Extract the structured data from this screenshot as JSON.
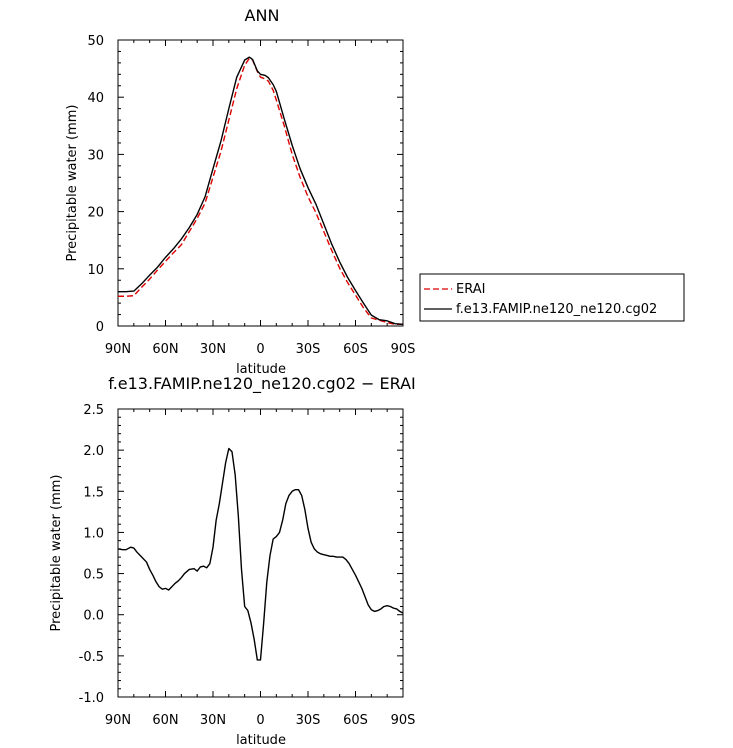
{
  "chart_data": [
    {
      "type": "line",
      "title": "ANN",
      "xlabel": "latitude",
      "ylabel": "Precipitable water (mm)",
      "xlim": [
        -90,
        90
      ],
      "ylim": [
        0,
        50
      ],
      "x_ticks": [
        -90,
        -60,
        -30,
        0,
        30,
        60,
        90
      ],
      "x_tick_labels": [
        "90N",
        "60N",
        "30N",
        "0",
        "30S",
        "60S",
        "90S"
      ],
      "y_ticks": [
        0,
        10,
        20,
        30,
        40,
        50
      ],
      "y_tick_labels": [
        "0",
        "10",
        "20",
        "30",
        "40",
        "50"
      ],
      "legend_position": "right",
      "series": [
        {
          "name": "ERAI",
          "color": "#dd0000",
          "dash": "dashed",
          "x": [
            -90,
            -85,
            -80,
            -75,
            -70,
            -65,
            -60,
            -55,
            -50,
            -45,
            -40,
            -35,
            -30,
            -25,
            -20,
            -15,
            -10,
            -7,
            -5,
            -2,
            0,
            3,
            5,
            8,
            10,
            15,
            20,
            25,
            30,
            35,
            40,
            45,
            50,
            55,
            60,
            65,
            70,
            75,
            80,
            85,
            90
          ],
          "y": [
            5.2,
            5.2,
            5.3,
            6.8,
            8.2,
            9.8,
            11.3,
            12.8,
            14.2,
            16.5,
            18.8,
            21.5,
            26,
            30.5,
            36,
            41.5,
            45.6,
            46.8,
            46.5,
            44.5,
            43.5,
            43.2,
            42.8,
            41.2,
            39.5,
            35,
            30,
            26,
            22.6,
            19.8,
            16.5,
            13.2,
            10.1,
            7.6,
            5.4,
            3.2,
            1.4,
            1.0,
            0.6,
            0.3,
            0.3
          ]
        },
        {
          "name": "f.e13.FAMIP.ne120_ne120.cg02",
          "color": "#000000",
          "dash": "solid",
          "x": [
            -90,
            -85,
            -80,
            -75,
            -70,
            -65,
            -60,
            -55,
            -50,
            -45,
            -40,
            -35,
            -30,
            -25,
            -20,
            -15,
            -10,
            -7,
            -5,
            -2,
            0,
            3,
            5,
            8,
            10,
            15,
            20,
            25,
            30,
            35,
            40,
            45,
            50,
            55,
            60,
            65,
            70,
            75,
            80,
            85,
            90
          ],
          "y": [
            6.0,
            6.0,
            6.1,
            7.4,
            8.9,
            10.3,
            12.0,
            13.5,
            15.2,
            17.2,
            19.5,
            22.6,
            27.5,
            32.3,
            38,
            43.5,
            46.5,
            47.0,
            46.6,
            44.6,
            44.0,
            43.8,
            43.4,
            42.2,
            41.0,
            36.2,
            31.6,
            27.5,
            24.2,
            21.3,
            17.8,
            14.3,
            11.2,
            8.5,
            6.2,
            4.0,
            1.9,
            1.1,
            0.9,
            0.4,
            0.3
          ]
        }
      ]
    },
    {
      "type": "line",
      "title": "f.e13.FAMIP.ne120_ne120.cg02 − ERAI",
      "xlabel": "latitude",
      "ylabel": "Precipitable water (mm)",
      "xlim": [
        -90,
        90
      ],
      "ylim": [
        -1.0,
        2.5
      ],
      "x_ticks": [
        -90,
        -60,
        -30,
        0,
        30,
        60,
        90
      ],
      "x_tick_labels": [
        "90N",
        "60N",
        "30N",
        "0",
        "30S",
        "60S",
        "90S"
      ],
      "y_ticks": [
        -1.0,
        -0.5,
        0.0,
        0.5,
        1.0,
        1.5,
        2.0,
        2.5
      ],
      "y_tick_labels": [
        "-1.0",
        "-0.5",
        "0.0",
        "0.5",
        "1.0",
        "1.5",
        "2.0",
        "2.5"
      ],
      "series": [
        {
          "color": "#000000",
          "dash": "solid",
          "x": [
            -90,
            -87,
            -85,
            -82,
            -80,
            -78,
            -75,
            -72,
            -70,
            -68,
            -66,
            -64,
            -62,
            -60,
            -58,
            -56,
            -54,
            -52,
            -50,
            -48,
            -45,
            -42,
            -40,
            -38,
            -36,
            -34,
            -32,
            -30,
            -28,
            -26,
            -24,
            -22,
            -20,
            -18,
            -16,
            -14,
            -12,
            -10,
            -8,
            -6,
            -4,
            -2,
            0,
            2,
            4,
            6,
            8,
            10,
            12,
            14,
            16,
            18,
            20,
            22,
            24,
            26,
            28,
            30,
            32,
            34,
            36,
            38,
            40,
            42,
            44,
            46,
            48,
            50,
            52,
            54,
            56,
            58,
            60,
            62,
            64,
            66,
            68,
            70,
            72,
            74,
            76,
            78,
            80,
            82,
            84,
            86,
            88,
            90
          ],
          "y": [
            0.8,
            0.79,
            0.79,
            0.82,
            0.81,
            0.76,
            0.7,
            0.64,
            0.55,
            0.48,
            0.4,
            0.34,
            0.31,
            0.32,
            0.3,
            0.34,
            0.38,
            0.41,
            0.45,
            0.5,
            0.55,
            0.56,
            0.53,
            0.58,
            0.59,
            0.57,
            0.62,
            0.82,
            1.15,
            1.35,
            1.6,
            1.85,
            2.02,
            1.98,
            1.7,
            1.2,
            0.55,
            0.1,
            0.05,
            -0.1,
            -0.3,
            -0.55,
            -0.55,
            -0.1,
            0.4,
            0.72,
            0.92,
            0.95,
            1.0,
            1.15,
            1.35,
            1.45,
            1.5,
            1.52,
            1.52,
            1.45,
            1.28,
            1.05,
            0.88,
            0.8,
            0.76,
            0.74,
            0.73,
            0.72,
            0.71,
            0.71,
            0.7,
            0.7,
            0.7,
            0.67,
            0.62,
            0.55,
            0.48,
            0.4,
            0.32,
            0.22,
            0.12,
            0.06,
            0.04,
            0.05,
            0.07,
            0.1,
            0.11,
            0.1,
            0.08,
            0.07,
            0.04,
            0.02
          ]
        }
      ]
    }
  ]
}
